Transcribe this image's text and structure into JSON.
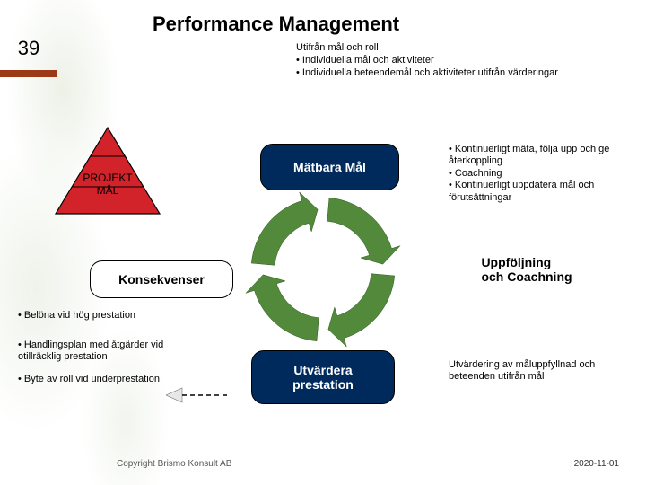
{
  "page_number": "39",
  "accent_color": "#9c3a17",
  "title": "Performance Management",
  "top_list": {
    "lead": "Utifrån mål och roll",
    "bullets": [
      "Individuella mål och aktiviteter",
      "Individuella beteendemål och aktiviteter utifrån värderingar"
    ]
  },
  "triangle": {
    "label1": "PROJEKT",
    "label2": "MÅL",
    "fill": "#d2232a",
    "stroke": "#000000"
  },
  "cycle": {
    "fill": "#52893a",
    "arrow_count": 4
  },
  "boxes": {
    "matbara": {
      "label": "Mätbara Mål",
      "fill": "#002a5c",
      "text": "#ffffff"
    },
    "konsekvenser": {
      "label": "Konsekvenser",
      "fill": "#ffffff",
      "text": "#000000"
    },
    "prestation": {
      "line1": "Utvärdera",
      "line2": "prestation",
      "fill": "#002a5c",
      "text": "#ffffff"
    },
    "uppfolj": {
      "line1": "Uppföljning",
      "line2": "och Coachning",
      "text": "#000000"
    }
  },
  "anno_right_top": [
    "• Kontinuerligt mäta, följa upp och ge återkoppling",
    "• Coachning",
    "• Kontinuerligt uppdatera mål och förutsättningar"
  ],
  "anno_right_bottom": "Utvärdering av måluppfyllnad och beteenden utifrån mål",
  "anno_left": [
    "• Belöna vid hög prestation",
    "• Handlingsplan med åtgärder vid otillräcklig prestation",
    "• Byte av roll vid underprestation"
  ],
  "copyright": "Copyright Brismo Konsult AB",
  "date": "2020-11-01",
  "dash_arrow": {
    "arrowhead_fill": "#e8e8e8",
    "dash_color": "#000000"
  }
}
